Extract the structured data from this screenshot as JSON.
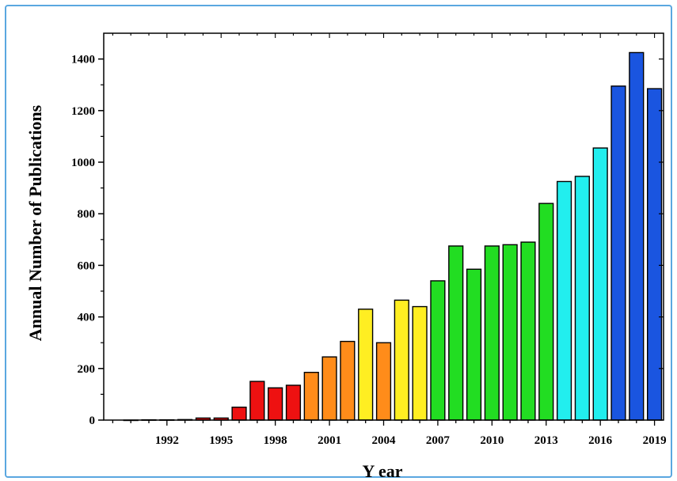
{
  "chart_data": {
    "type": "bar",
    "title": "",
    "xlabel": "Y ear",
    "ylabel": "Annual Number of Publications",
    "ylim": [
      0,
      1500
    ],
    "y_ticks": [
      0,
      200,
      400,
      600,
      800,
      1000,
      1200,
      1400
    ],
    "x_tick_labels": [
      "1992",
      "1995",
      "1998",
      "2001",
      "2004",
      "2007",
      "2010",
      "2013",
      "2016",
      "2019"
    ],
    "x_range": [
      1989,
      2019
    ],
    "grid": false,
    "legend": "none",
    "x": [
      1990,
      1991,
      1992,
      1993,
      1994,
      1995,
      1996,
      1997,
      1998,
      1999,
      2000,
      2001,
      2002,
      2003,
      2004,
      2005,
      2006,
      2007,
      2008,
      2009,
      2010,
      2011,
      2012,
      2013,
      2014,
      2015,
      2016,
      2017,
      2018,
      2019
    ],
    "values": [
      0,
      1,
      1,
      2,
      8,
      8,
      50,
      150,
      125,
      135,
      185,
      245,
      305,
      430,
      300,
      465,
      440,
      540,
      675,
      585,
      675,
      680,
      690,
      840,
      925,
      945,
      1055,
      1295,
      1425,
      1285
    ],
    "colors": [
      "#ee1111",
      "#ee1111",
      "#ee1111",
      "#ee1111",
      "#ee1111",
      "#ee1111",
      "#ee1111",
      "#ee1111",
      "#ee1111",
      "#ee1111",
      "#ff8c1a",
      "#ff8c1a",
      "#ff8c1a",
      "#ffee22",
      "#ff8c1a",
      "#ffee22",
      "#ffee22",
      "#22dd22",
      "#22dd22",
      "#22dd22",
      "#22dd22",
      "#22dd22",
      "#22dd22",
      "#22dd22",
      "#22eeee",
      "#22eeee",
      "#22eeee",
      "#1a55e0",
      "#1a55e0",
      "#1a55e0"
    ]
  }
}
